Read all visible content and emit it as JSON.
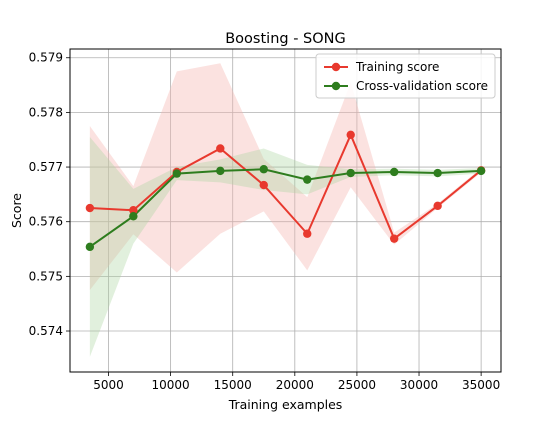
{
  "chart_data": {
    "type": "line",
    "title": "Boosting - SONG",
    "xlabel": "Training examples",
    "ylabel": "Score",
    "xlim": [
      1900,
      36600
    ],
    "ylim": [
      0.57325,
      0.57916
    ],
    "xticks": [
      5000,
      10000,
      15000,
      20000,
      25000,
      30000,
      35000
    ],
    "yticks": [
      0.574,
      0.575,
      0.576,
      0.577,
      0.578,
      0.579
    ],
    "grid": true,
    "legend_position": "top-right",
    "x": [
      3500,
      7000,
      10500,
      14000,
      17500,
      21000,
      24500,
      28000,
      31500,
      35000
    ],
    "series": [
      {
        "name": "Training score",
        "color": "#e8392e",
        "values": [
          0.57625,
          0.57621,
          0.57691,
          0.57734,
          0.57667,
          0.57578,
          0.57759,
          0.57569,
          0.57629,
          0.57694
        ],
        "band_upper": [
          0.57775,
          0.57665,
          0.57875,
          0.5789,
          0.57715,
          0.57645,
          0.57855,
          0.5758,
          0.57633,
          0.57698
        ],
        "band_lower": [
          0.57475,
          0.57577,
          0.57507,
          0.57578,
          0.57619,
          0.57511,
          0.57663,
          0.57558,
          0.57625,
          0.5769
        ],
        "band_color": "#f5b7b1"
      },
      {
        "name": "Cross-validation score",
        "color": "#2e7d1e",
        "values": [
          0.57554,
          0.5761,
          0.57688,
          0.57693,
          0.57696,
          0.57677,
          0.57689,
          0.57691,
          0.57689,
          0.57693
        ],
        "band_upper": [
          0.57755,
          0.5766,
          0.577,
          0.57714,
          0.57734,
          0.57704,
          0.57696,
          0.57697,
          0.57695,
          0.57698
        ],
        "band_lower": [
          0.57353,
          0.5756,
          0.57676,
          0.57672,
          0.57658,
          0.5765,
          0.57682,
          0.57685,
          0.57683,
          0.57688
        ],
        "band_color": "#a9d39e"
      }
    ]
  }
}
